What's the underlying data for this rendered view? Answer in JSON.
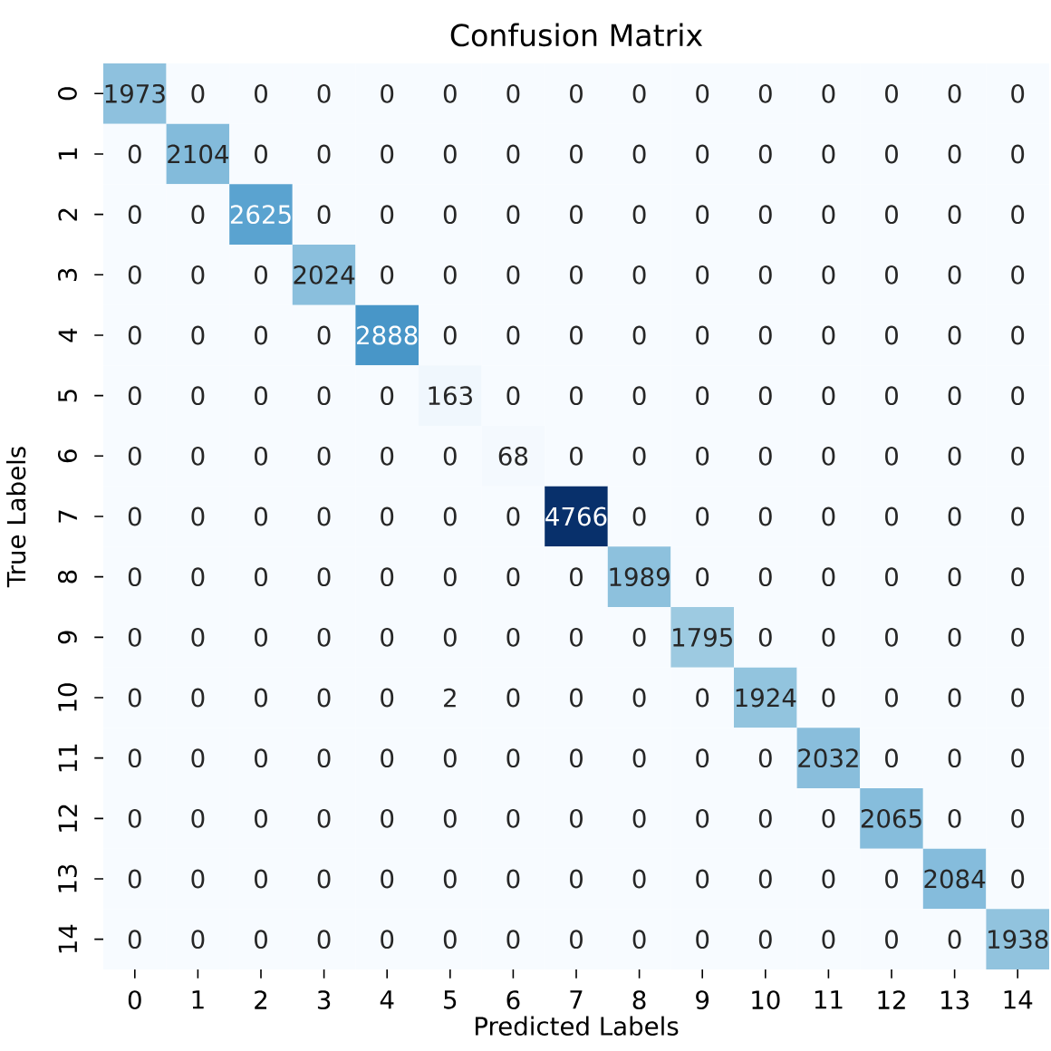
{
  "chart_data": {
    "type": "heatmap",
    "title": "Confusion Matrix",
    "xlabel": "Predicted Labels",
    "ylabel": "True Labels",
    "categories": [
      "0",
      "1",
      "2",
      "3",
      "4",
      "5",
      "6",
      "7",
      "8",
      "9",
      "10",
      "11",
      "12",
      "13",
      "14"
    ],
    "y_categories": [
      "0",
      "1",
      "2",
      "3",
      "4",
      "5",
      "6",
      "7",
      "8",
      "9",
      "10",
      "11",
      "12",
      "13",
      "14"
    ],
    "cells": [
      [
        1973,
        0,
        0,
        0,
        0,
        0,
        0,
        0,
        0,
        0,
        0,
        0,
        0,
        0,
        0
      ],
      [
        0,
        2104,
        0,
        0,
        0,
        0,
        0,
        0,
        0,
        0,
        0,
        0,
        0,
        0,
        0
      ],
      [
        0,
        0,
        2625,
        0,
        0,
        0,
        0,
        0,
        0,
        0,
        0,
        0,
        0,
        0,
        0
      ],
      [
        0,
        0,
        0,
        2024,
        0,
        0,
        0,
        0,
        0,
        0,
        0,
        0,
        0,
        0,
        0
      ],
      [
        0,
        0,
        0,
        0,
        2888,
        0,
        0,
        0,
        0,
        0,
        0,
        0,
        0,
        0,
        0
      ],
      [
        0,
        0,
        0,
        0,
        0,
        163,
        0,
        0,
        0,
        0,
        0,
        0,
        0,
        0,
        0
      ],
      [
        0,
        0,
        0,
        0,
        0,
        0,
        68,
        0,
        0,
        0,
        0,
        0,
        0,
        0,
        0
      ],
      [
        0,
        0,
        0,
        0,
        0,
        0,
        0,
        4766,
        0,
        0,
        0,
        0,
        0,
        0,
        0
      ],
      [
        0,
        0,
        0,
        0,
        0,
        0,
        0,
        0,
        1989,
        0,
        0,
        0,
        0,
        0,
        0
      ],
      [
        0,
        0,
        0,
        0,
        0,
        0,
        0,
        0,
        0,
        1795,
        0,
        0,
        0,
        0,
        0
      ],
      [
        0,
        0,
        0,
        0,
        0,
        2,
        0,
        0,
        0,
        0,
        1924,
        0,
        0,
        0,
        0
      ],
      [
        0,
        0,
        0,
        0,
        0,
        0,
        0,
        0,
        0,
        0,
        0,
        2032,
        0,
        0,
        0
      ],
      [
        0,
        0,
        0,
        0,
        0,
        0,
        0,
        0,
        0,
        0,
        0,
        0,
        2065,
        0,
        0
      ],
      [
        0,
        0,
        0,
        0,
        0,
        0,
        0,
        0,
        0,
        0,
        0,
        0,
        0,
        2084,
        0
      ],
      [
        0,
        0,
        0,
        0,
        0,
        0,
        0,
        0,
        0,
        0,
        0,
        0,
        0,
        0,
        1938
      ]
    ],
    "data_labels": true
  }
}
